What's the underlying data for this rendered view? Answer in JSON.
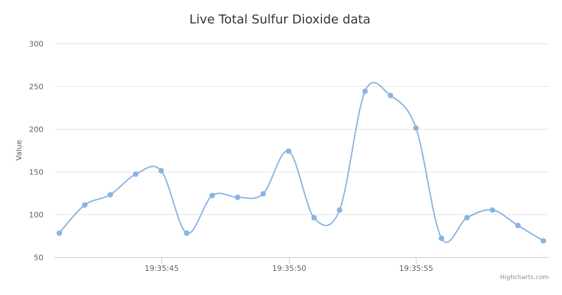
{
  "chart_data": {
    "type": "line",
    "title": "Live Total Sulfur Dioxide data",
    "xlabel": "",
    "ylabel": "Value",
    "x": [
      "19:35:41",
      "19:35:42",
      "19:35:43",
      "19:35:44",
      "19:35:45",
      "19:35:46",
      "19:35:47",
      "19:35:48",
      "19:35:49",
      "19:35:50",
      "19:35:51",
      "19:35:52",
      "19:35:53",
      "19:35:54",
      "19:35:55",
      "19:35:56",
      "19:35:57",
      "19:35:58",
      "19:35:59",
      "19:36:00"
    ],
    "values": [
      78,
      111,
      123,
      147,
      151,
      78,
      122,
      120,
      124,
      174,
      96,
      105,
      244,
      239,
      201,
      72,
      96,
      105,
      87,
      69
    ],
    "x_ticks": [
      "19:35:45",
      "19:35:50",
      "19:35:55"
    ],
    "y_ticks": [
      50,
      100,
      150,
      200,
      250,
      300
    ],
    "ylim": [
      50,
      300
    ],
    "grid": true,
    "smooth": true,
    "legend": "none",
    "colors": {
      "series": "#8bb4e3",
      "grid": "#e6e6e6",
      "axis": "#c0d0e0"
    }
  },
  "credits": "Highcharts.com"
}
